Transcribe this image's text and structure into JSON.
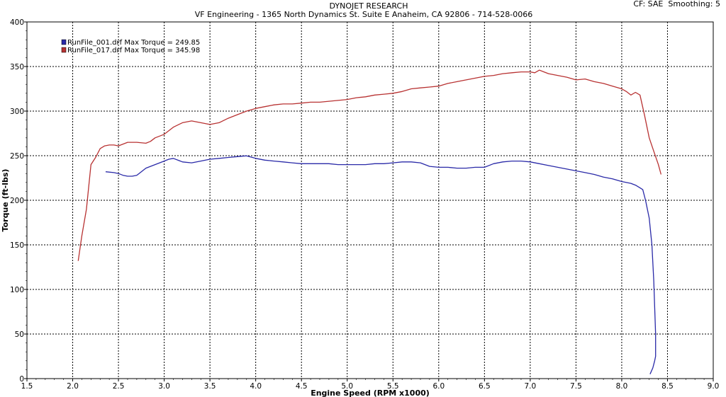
{
  "chart_data": {
    "type": "line",
    "title": "DYNOJET RESEARCH",
    "subtitle": "VF Engineering - 1365 North Dynamics St. Suite E Anaheim, CA 92806 - 714-528-0066",
    "corner_info": "CF: SAE  Smoothing: 5",
    "xlabel": "Engine Speed (RPM x1000)",
    "ylabel": "Torque (ft-lbs)",
    "xlim": [
      1.5,
      9.0
    ],
    "ylim": [
      0,
      400
    ],
    "x_ticks": [
      1.5,
      2.0,
      2.5,
      3.0,
      3.5,
      4.0,
      4.5,
      5.0,
      5.5,
      6.0,
      6.5,
      7.0,
      7.5,
      8.0,
      8.5,
      9.0
    ],
    "x_tick_labels": [
      "1.5",
      "2.0",
      "2.5",
      "3.0",
      "3.5",
      "4.0",
      "4.5",
      "5.0",
      "5.5",
      "6.0",
      "6.5",
      "7.0",
      "7.5",
      "8.0",
      "8.5",
      "9.0"
    ],
    "y_ticks": [
      0,
      50,
      100,
      150,
      200,
      250,
      300,
      350,
      400
    ],
    "y_tick_labels": [
      "0",
      "50",
      "100",
      "150",
      "200",
      "250",
      "300",
      "350",
      "400"
    ],
    "grid": true,
    "legend_position": "top-left",
    "series": [
      {
        "name": "RunFile_001.drf Max Torque = 249.85",
        "color": "#2a2aa8",
        "x": [
          2.36,
          2.45,
          2.5,
          2.55,
          2.6,
          2.65,
          2.7,
          2.75,
          2.8,
          2.9,
          3.0,
          3.05,
          3.1,
          3.2,
          3.3,
          3.4,
          3.5,
          3.6,
          3.7,
          3.8,
          3.9,
          4.0,
          4.1,
          4.2,
          4.3,
          4.4,
          4.5,
          4.6,
          4.7,
          4.8,
          4.9,
          5.0,
          5.1,
          5.2,
          5.3,
          5.4,
          5.5,
          5.6,
          5.7,
          5.8,
          5.9,
          6.0,
          6.1,
          6.2,
          6.3,
          6.4,
          6.5,
          6.6,
          6.7,
          6.8,
          6.9,
          7.0,
          7.1,
          7.2,
          7.3,
          7.4,
          7.5,
          7.6,
          7.7,
          7.8,
          7.9,
          8.0,
          8.1,
          8.15,
          8.2,
          8.23,
          8.26,
          8.3,
          8.33,
          8.35,
          8.36,
          8.37,
          8.37,
          8.37,
          8.36,
          8.34,
          8.31
        ],
        "values": [
          232,
          231,
          230,
          228,
          227,
          227,
          228,
          232,
          236,
          240,
          244,
          246,
          247,
          243,
          242,
          244,
          246,
          247,
          248,
          249,
          249.85,
          247,
          245,
          244,
          243,
          242,
          241,
          241,
          241,
          241,
          240,
          240,
          240,
          240,
          241,
          241,
          242,
          243,
          243,
          242,
          238,
          237,
          237,
          236,
          236,
          237,
          237,
          241,
          243,
          244,
          244,
          243,
          241,
          239,
          237,
          235,
          233,
          231,
          229,
          226,
          224,
          221,
          219,
          217,
          214,
          212,
          200,
          180,
          150,
          110,
          80,
          50,
          30,
          25,
          20,
          12,
          5
        ]
      },
      {
        "name": "RunFile_017.drf Max Torque = 345.98",
        "color": "#b83232",
        "x": [
          2.06,
          2.1,
          2.15,
          2.2,
          2.25,
          2.3,
          2.35,
          2.4,
          2.45,
          2.5,
          2.55,
          2.6,
          2.7,
          2.8,
          2.85,
          2.9,
          3.0,
          3.1,
          3.2,
          3.3,
          3.4,
          3.5,
          3.6,
          3.7,
          3.8,
          3.9,
          4.0,
          4.1,
          4.2,
          4.3,
          4.4,
          4.5,
          4.6,
          4.7,
          4.8,
          4.9,
          5.0,
          5.1,
          5.2,
          5.3,
          5.4,
          5.5,
          5.6,
          5.7,
          5.8,
          5.9,
          6.0,
          6.1,
          6.2,
          6.3,
          6.4,
          6.5,
          6.6,
          6.7,
          6.8,
          6.9,
          7.0,
          7.05,
          7.1,
          7.15,
          7.2,
          7.3,
          7.4,
          7.5,
          7.6,
          7.7,
          7.8,
          7.9,
          8.0,
          8.05,
          8.1,
          8.15,
          8.2,
          8.25,
          8.3,
          8.35,
          8.4,
          8.43
        ],
        "values": [
          132,
          160,
          190,
          240,
          248,
          258,
          261,
          262,
          262,
          261,
          263,
          265,
          265,
          264,
          266,
          270,
          274,
          282,
          287,
          289,
          287,
          285,
          287,
          292,
          296,
          300,
          303,
          305,
          307,
          308,
          308,
          309,
          310,
          310,
          311,
          312,
          313,
          315,
          316,
          318,
          319,
          320,
          322,
          325,
          326,
          327,
          328,
          331,
          333,
          335,
          337,
          339,
          340,
          342,
          343,
          344,
          344,
          343,
          345.98,
          344,
          342,
          340,
          338,
          335,
          336,
          333,
          331,
          328,
          325,
          322,
          318,
          321,
          318,
          295,
          270,
          255,
          240,
          229
        ]
      }
    ]
  }
}
